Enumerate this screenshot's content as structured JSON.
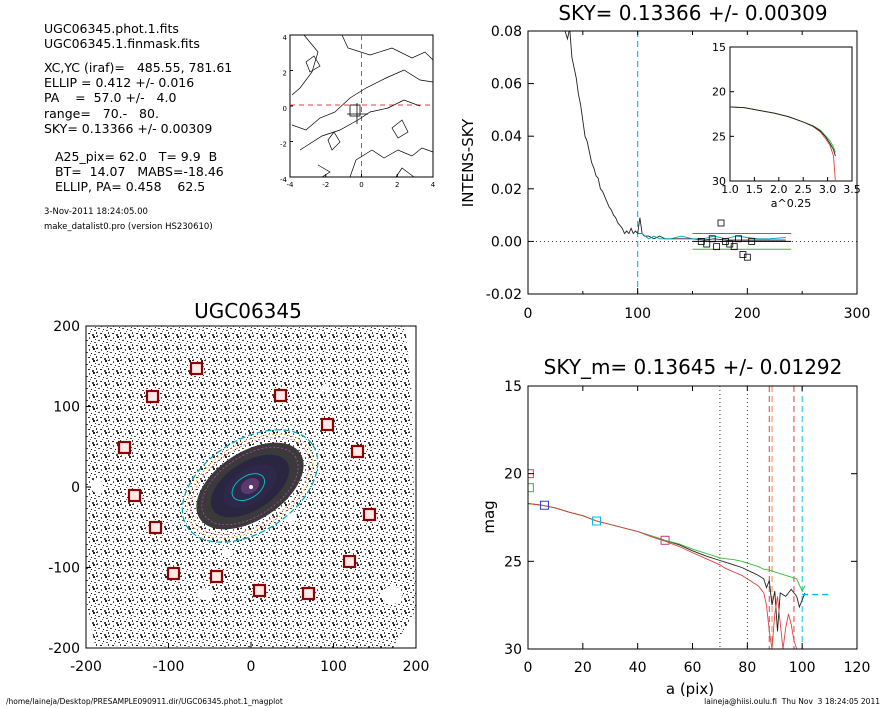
{
  "header": {
    "lines": [
      "UGC06345.phot.1.fits",
      "UGC06345.1.finmask.fits",
      "XC,YC (iraf)=   485.55, 781.61",
      "ELLIP = 0.412 +/- 0.016",
      "PA    =  57.0 +/-   4.0",
      "range=   70.-   80.",
      "SKY= 0.13366 +/- 0.00309",
      "A25_pix= 62.0   T= 9.9  B",
      "BT=  14.07   MABS=-18.46",
      "ELLIP, PA= 0.458    62.5"
    ],
    "date": "3-Nov-2011 18:24:05.00",
    "program": "make_datalist0.pro (version HS230610)"
  },
  "footer": {
    "path": "/home/laineja/Desktop/PRESAMPLE090911.dir/UGC06345.phot.1_magplot",
    "user": "laineja@hiisi.oulu.fi  Thu Nov  3 18:24:05 2011"
  },
  "contour_panel": {
    "x_ticks": [
      "-4",
      "-2",
      "0",
      "2",
      "4"
    ],
    "y_ticks": [
      "4",
      "2",
      "0",
      "-2",
      "-4"
    ]
  },
  "image_panel": {
    "title": "UGC06345",
    "x_ticks": [
      "-200",
      "-100",
      "0",
      "100",
      "200"
    ],
    "y_ticks": [
      "200",
      "100",
      "0",
      "-100",
      "-200"
    ]
  },
  "chart_data": [
    {
      "type": "line",
      "title": "SKY= 0.13366 +/- 0.00309",
      "xlabel": "",
      "ylabel": "INTENS-SKY",
      "xlim": [
        0,
        300
      ],
      "ylim": [
        -0.02,
        0.08
      ],
      "x_ticks": [
        "0",
        "100",
        "200",
        "300"
      ],
      "y_ticks": [
        "0.08",
        "0.06",
        "0.04",
        "0.02",
        "0.00",
        "-0.02"
      ],
      "x_minor_ticks": [
        "50",
        "150",
        "250"
      ],
      "series": [
        {
          "color": "#222222",
          "x": [
            30,
            33,
            36,
            38,
            40,
            42,
            44,
            46,
            48,
            50,
            52,
            54,
            56,
            58,
            60,
            62,
            64,
            66,
            68,
            70,
            72,
            74,
            76,
            78,
            80,
            82,
            84,
            86,
            88,
            90,
            92,
            94,
            96,
            98,
            100,
            102,
            104,
            106,
            108,
            110,
            115,
            120,
            125,
            130,
            140,
            150,
            160,
            170,
            180,
            190,
            200,
            210,
            220,
            235
          ],
          "y": [
            0.08,
            0.081,
            0.077,
            0.081,
            0.07,
            0.066,
            0.062,
            0.056,
            0.052,
            0.046,
            0.04,
            0.038,
            0.034,
            0.03,
            0.028,
            0.025,
            0.024,
            0.02,
            0.019,
            0.017,
            0.015,
            0.013,
            0.012,
            0.01,
            0.009,
            0.007,
            0.006,
            0.005,
            0.003,
            0.004,
            0.003,
            0.005,
            0.003,
            0.004,
            0.003,
            0.009,
            0.003,
            0.002,
            0.002,
            0.002,
            0.001,
            0.002,
            0.001,
            0.001,
            0.001,
            0.001,
            0.0005,
            0.001,
            0.0005,
            0.0005,
            0.0005,
            0.0005,
            0.0005,
            0.0005
          ]
        },
        {
          "color": "#00a0c0",
          "x": [
            100,
            104,
            110,
            115,
            120,
            130,
            140,
            150,
            160,
            170,
            180,
            190,
            200,
            210,
            220,
            235
          ],
          "y": [
            0.003,
            0.003,
            0.001,
            0.002,
            0.001,
            0.001,
            0.002,
            0.001,
            0.001,
            0.002,
            0.001,
            0.002,
            0.0015,
            0.001,
            0.001,
            0.0015
          ]
        }
      ],
      "sky_points": {
        "x": [
          158,
          163,
          168,
          172,
          176,
          180,
          184,
          188,
          192,
          196,
          200,
          204
        ],
        "y": [
          0.0,
          -0.001,
          0.001,
          -0.002,
          0.007,
          0.0,
          -0.001,
          -0.002,
          0.001,
          -0.005,
          -0.006,
          0.0
        ]
      },
      "sky_levels": [
        {
          "color": "#e04040",
          "x": [
            150,
            240
          ],
          "y": [
            0.003,
            0.003
          ]
        },
        {
          "color": "#000000",
          "x": [
            150,
            240
          ],
          "y": [
            0.0,
            0.0
          ]
        },
        {
          "color": "#30c030",
          "x": [
            150,
            240
          ],
          "y": [
            -0.003,
            -0.003
          ]
        }
      ],
      "vline": 100,
      "inset": {
        "xlabel": "a^0.25",
        "xlim": [
          1.0,
          3.5
        ],
        "ylim": [
          15,
          30
        ],
        "x_ticks": [
          "1.0",
          "1.5",
          "2.0",
          "2.5",
          "3.0",
          "3.5"
        ],
        "y_ticks": [
          "15",
          "20",
          "25",
          "30"
        ],
        "series": [
          {
            "color": "#e04040",
            "x": [
              1.0,
              1.3,
              1.6,
              1.9,
              2.2,
              2.5,
              2.7,
              2.85,
              2.95,
              3.05,
              3.12,
              3.16
            ],
            "y": [
              21.7,
              21.8,
              22.1,
              22.4,
              22.8,
              23.4,
              23.9,
              24.5,
              25.2,
              26.0,
              27.2,
              30.0
            ]
          },
          {
            "color": "#30c030",
            "x": [
              1.0,
              1.3,
              1.6,
              1.9,
              2.2,
              2.5,
              2.7,
              2.85,
              2.95,
              3.05,
              3.12,
              3.16
            ],
            "y": [
              21.7,
              21.8,
              22.1,
              22.4,
              22.8,
              23.4,
              23.8,
              24.3,
              24.9,
              25.5,
              26.2,
              26.8
            ]
          },
          {
            "color": "#222222",
            "x": [
              1.0,
              1.3,
              1.6,
              1.9,
              2.2,
              2.5,
              2.7,
              2.85,
              2.95,
              3.05,
              3.12,
              3.16
            ],
            "y": [
              21.7,
              21.8,
              22.1,
              22.4,
              22.8,
              23.4,
              23.85,
              24.4,
              25.0,
              25.8,
              26.5,
              27.2
            ]
          }
        ]
      }
    },
    {
      "type": "line",
      "title": "SKY_m=  0.13645 +/- 0.01292",
      "xlabel": "a (pix)",
      "ylabel": "mag",
      "xlim": [
        0,
        120
      ],
      "ylim": [
        15,
        30
      ],
      "x_ticks": [
        "0",
        "20",
        "40",
        "60",
        "80",
        "100",
        "120"
      ],
      "y_ticks": [
        "15",
        "20",
        "25",
        "30"
      ],
      "series": [
        {
          "color": "#222222",
          "x": [
            0,
            5,
            10,
            15,
            20,
            25,
            30,
            35,
            40,
            45,
            50,
            55,
            60,
            65,
            70,
            72,
            75,
            78,
            80,
            82,
            84,
            86,
            87,
            88,
            89,
            90,
            91,
            92,
            94,
            96,
            98,
            99,
            100,
            101
          ],
          "y": [
            21.7,
            21.8,
            21.95,
            22.2,
            22.4,
            22.7,
            22.9,
            23.1,
            23.3,
            23.55,
            23.8,
            24.05,
            24.4,
            24.7,
            24.95,
            25.05,
            25.2,
            25.35,
            25.5,
            25.65,
            25.8,
            26.0,
            26.5,
            26.1,
            27.5,
            26.7,
            29.0,
            26.8,
            27.0,
            26.6,
            27.0,
            27.6,
            27.2,
            26.8
          ]
        },
        {
          "color": "#30c030",
          "x": [
            0,
            5,
            10,
            15,
            20,
            25,
            30,
            35,
            40,
            45,
            50,
            55,
            60,
            65,
            70,
            72,
            75,
            78,
            80,
            82,
            84,
            86,
            88,
            90,
            92,
            94,
            96,
            98,
            100,
            101
          ],
          "y": [
            21.7,
            21.8,
            21.95,
            22.2,
            22.4,
            22.7,
            22.9,
            23.1,
            23.3,
            23.55,
            23.8,
            24.0,
            24.3,
            24.55,
            24.8,
            24.85,
            24.9,
            25.0,
            25.1,
            25.2,
            25.3,
            25.45,
            25.5,
            25.6,
            25.7,
            25.8,
            25.9,
            26.0,
            26.7,
            26.4
          ]
        },
        {
          "color": "#e04040",
          "x": [
            0,
            5,
            10,
            15,
            20,
            25,
            30,
            35,
            40,
            45,
            50,
            55,
            60,
            65,
            70,
            72,
            75,
            78,
            80,
            82,
            84,
            86,
            87,
            88,
            89,
            90,
            91,
            92,
            93,
            94,
            95,
            96,
            97,
            98
          ],
          "y": [
            21.7,
            21.8,
            21.95,
            22.2,
            22.4,
            22.7,
            22.9,
            23.1,
            23.3,
            23.6,
            23.85,
            24.15,
            24.5,
            24.85,
            25.2,
            25.4,
            25.6,
            25.8,
            26.0,
            26.2,
            26.4,
            26.8,
            27.5,
            29.0,
            30.0,
            28.0,
            27.0,
            28.5,
            30.0,
            28.8,
            28.0,
            28.6,
            29.5,
            30.0
          ]
        },
        {
          "color": "#00b8e0",
          "x": [
            100,
            102,
            104,
            106,
            108,
            110
          ],
          "y": [
            26.9,
            26.9,
            26.9,
            26.9,
            26.9,
            26.9
          ]
        }
      ],
      "markers": [
        {
          "color": "#e04040",
          "x": 0.5,
          "y": 20.0
        },
        {
          "color": "#30c030",
          "x": 0.5,
          "y": 20.8
        },
        {
          "color": "#3040c0",
          "x": 6,
          "y": 21.8
        },
        {
          "color": "#00b8e0",
          "x": 25,
          "y": 22.7
        },
        {
          "color": "#c04080",
          "x": 50,
          "y": 23.8
        }
      ],
      "vlines_dotted": [
        70,
        80
      ],
      "vlines_colored": [
        {
          "x": 88,
          "color": "#e04040"
        },
        {
          "x": 89,
          "color": "#ff8040"
        },
        {
          "x": 97,
          "color": "#e04040"
        },
        {
          "x": 100,
          "color": "#00c8e8"
        }
      ]
    }
  ]
}
